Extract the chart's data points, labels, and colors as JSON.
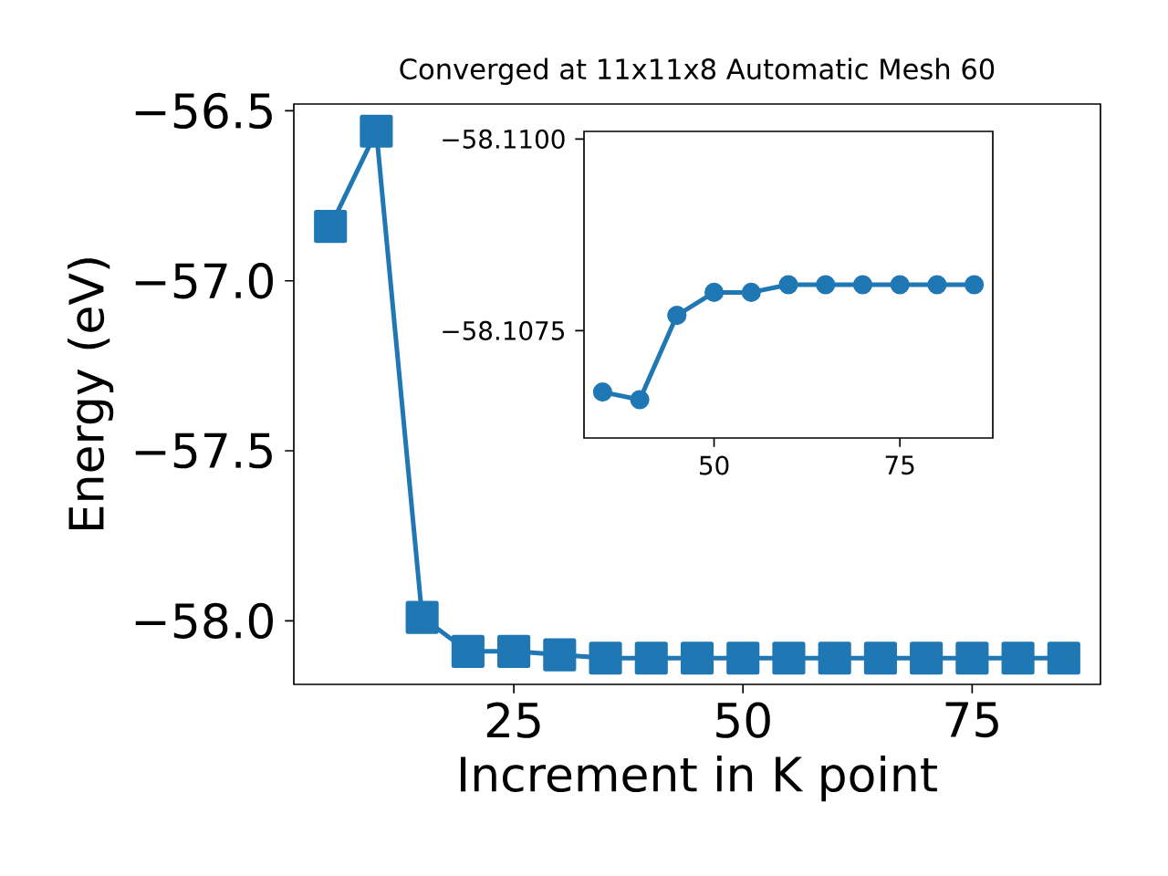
{
  "chart_data": [
    {
      "type": "line",
      "title": "Converged at 11x11x8 Automatic Mesh 60",
      "xlabel": "Increment in K point",
      "ylabel": "Energy (eV)",
      "x": [
        5,
        10,
        15,
        20,
        25,
        30,
        35,
        40,
        45,
        50,
        55,
        60,
        65,
        70,
        75,
        80,
        85
      ],
      "values": [
        -56.84,
        -56.56,
        -57.99,
        -58.09,
        -58.09,
        -58.1,
        -58.11,
        -58.11,
        -58.11,
        -58.11,
        -58.11,
        -58.11,
        -58.11,
        -58.11,
        -58.11,
        -58.11,
        -58.11
      ],
      "color": "#1f77b4",
      "marker": "square",
      "line_style": "solid",
      "xlim": [
        1,
        89
      ],
      "ylim": [
        -58.187,
        -56.48
      ],
      "xticks": [
        25,
        50,
        75
      ],
      "yticks": [
        {
          "value": -58.0,
          "label": "−58.0"
        },
        {
          "value": -57.5,
          "label": "−57.5"
        },
        {
          "value": -57.0,
          "label": "−57.0"
        },
        {
          "value": -56.5,
          "label": "−56.5"
        }
      ]
    },
    {
      "type": "line",
      "x": [
        35,
        40,
        45,
        50,
        55,
        60,
        65,
        70,
        75,
        80,
        85
      ],
      "values": [
        -58.1067,
        -58.1066,
        -58.1077,
        -58.108,
        -58.108,
        -58.1081,
        -58.1081,
        -58.1081,
        -58.1081,
        -58.1081,
        -58.1081
      ],
      "color": "#1f77b4",
      "marker": "circle",
      "line_style": "solid",
      "xlim": [
        32.5,
        87.5
      ],
      "ylim": [
        -58.1061,
        -58.1101
      ],
      "xticks": [
        50,
        75
      ],
      "yticks": [
        {
          "value": -58.11,
          "label": "−58.1100"
        },
        {
          "value": -58.1075,
          "label": "−58.1075"
        }
      ]
    }
  ]
}
